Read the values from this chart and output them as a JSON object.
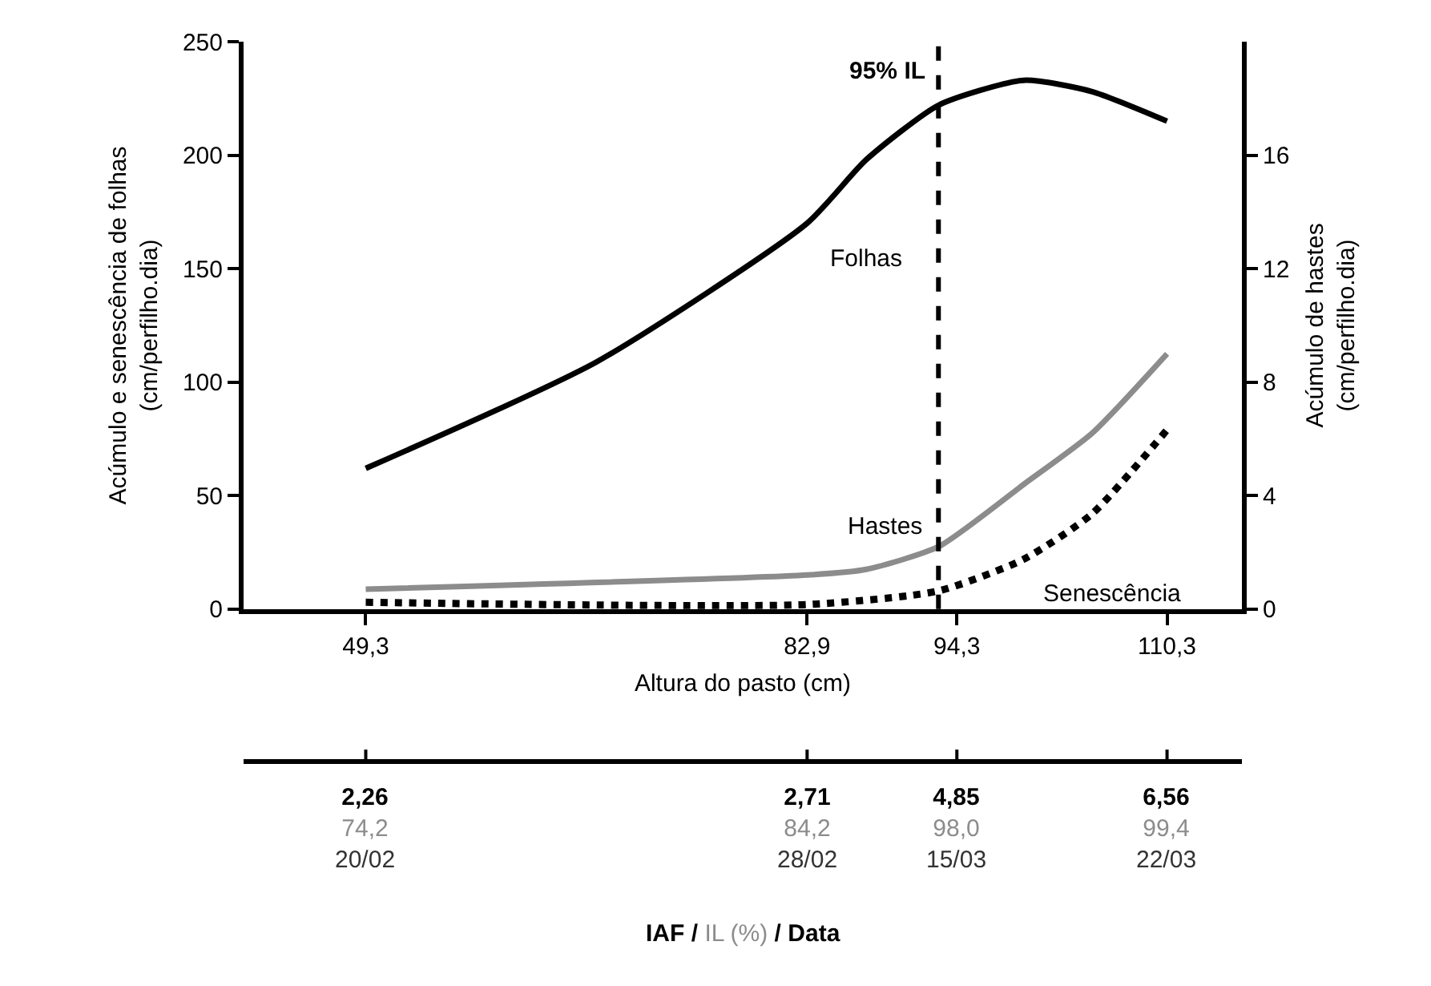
{
  "chart_data": {
    "type": "line",
    "xlabel": "Altura do pasto (cm)",
    "ylabel": "Acúmulo e senescência de folhas (cm/perfilho.dia)",
    "y2label": "Acúmulo de hastes (cm/perfilho.dia)",
    "xlim": [
      40,
      116
    ],
    "xticks": [
      {
        "value": 49.3,
        "label": "49,3"
      },
      {
        "value": 82.9,
        "label": "82,9"
      },
      {
        "value": 94.3,
        "label": "94,3"
      },
      {
        "value": 110.3,
        "label": "110,3"
      }
    ],
    "annotations": [
      "2,26\n74,2\n20/02",
      "2,71\n84,2\n28/02",
      "4,85\n98,0\n15/03",
      "6,56\n99,4\n22/03",
      "IAF / IL (%) / Data"
    ],
    "ylim": [
      0,
      250
    ],
    "yticks": [
      0,
      50,
      100,
      150,
      200,
      250
    ],
    "y2lim": [
      0,
      20
    ],
    "y2ticks": [
      0,
      4,
      8,
      12,
      16
    ],
    "grid": false,
    "legend": false,
    "marker": "none",
    "series": [
      {
        "name": "Folhas",
        "color": "#000000",
        "line_style": "solid",
        "x": [
          49.3,
          66.9,
          82.9,
          87.4,
          92.9,
          99.4,
          104.6,
          110.3
        ],
        "values": [
          62,
          109,
          170,
          198,
          222,
          233,
          228,
          215
        ]
      },
      {
        "name": "Hastes",
        "color": "#8c8c8c",
        "line_style": "solid",
        "axis": "y2",
        "x": [
          49.3,
          82.9,
          87.4,
          92.9,
          99.4,
          104.6,
          110.3
        ],
        "values": [
          0.7,
          1.2,
          1.4,
          2.2,
          4.4,
          6.2,
          9.0
        ]
      },
      {
        "name": "Senescência",
        "color": "#000000",
        "line_style": "dotted",
        "x": [
          49.3,
          82.9,
          92.9,
          99.4,
          104.6,
          110.3
        ],
        "values": [
          3,
          2,
          8,
          22,
          42,
          79
        ]
      }
    ],
    "ref_lines": [
      {
        "axis": "x",
        "value": 92.9,
        "label": "95% IL",
        "color": "#000000",
        "line_style": "dashed"
      }
    ]
  }
}
